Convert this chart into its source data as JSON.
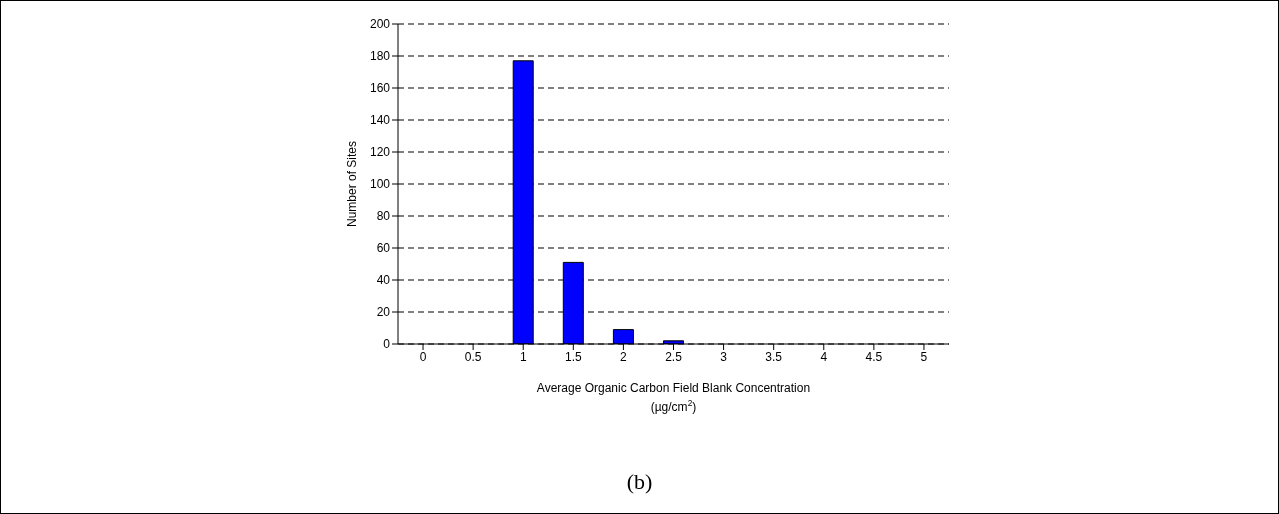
{
  "chart_data": {
    "type": "bar",
    "categories": [
      "0",
      "0.5",
      "1",
      "1.5",
      "2",
      "2.5",
      "3",
      "3.5",
      "4",
      "4.5",
      "5"
    ],
    "values": [
      0,
      0,
      177,
      51,
      9,
      2,
      0,
      0,
      0,
      0,
      0
    ],
    "color": "#0000ff",
    "xlabel": "Average Organic Carbon Field Blank Concentration\n(µg/cm$^{2}$)",
    "ylabel": "Number of Sites",
    "ylim": [
      0,
      200
    ],
    "yticks": [
      0,
      20,
      40,
      60,
      80,
      100,
      120,
      140,
      160,
      180,
      200
    ],
    "grid": "y",
    "line_style": "dashed",
    "annotations": [
      "(b)"
    ]
  }
}
